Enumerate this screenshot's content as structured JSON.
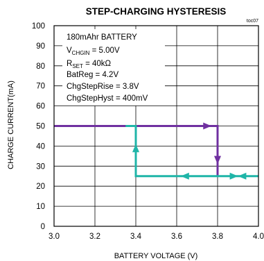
{
  "chart_data": {
    "type": "line",
    "title": "STEP-CHARGING HYSTERESIS",
    "tag": "toc07",
    "xlabel": "BATTERY VOLTAGE (V)",
    "ylabel": "CHARGE CURRENT(mA)",
    "xlim": [
      3.0,
      4.0
    ],
    "ylim": [
      0,
      100
    ],
    "x_ticks": [
      3.0,
      3.2,
      3.4,
      3.6,
      3.8,
      4.0
    ],
    "x_tick_labels": [
      "3.0",
      "3.2",
      "3.4",
      "3.6",
      "3.8",
      "4.0"
    ],
    "y_ticks": [
      0,
      10,
      20,
      30,
      40,
      50,
      60,
      70,
      80,
      90,
      100
    ],
    "y_tick_labels": [
      "0",
      "10",
      "20",
      "30",
      "40",
      "50",
      "60",
      "70",
      "80",
      "90",
      "100"
    ],
    "grid": true,
    "annotation": {
      "line1": "180mAhr BATTERY",
      "line2_main": "V",
      "line2_sub": "CHGIN",
      "line2_rest": " = 5.00V",
      "line3_main": "R",
      "line3_sub": "SET",
      "line3_rest": " = 40kΩ",
      "line4": "BatReg = 4.2V",
      "line5": "ChgStepRise = 3.8V",
      "line6": "ChgStepHyst = 400mV"
    },
    "series": [
      {
        "color": "#7030a0",
        "x": [
          3.0,
          3.8,
          3.8
        ],
        "y": [
          50,
          50,
          25
        ],
        "arrows": [
          [
            3.75,
            50,
            "right"
          ],
          [
            3.8,
            33,
            "down"
          ]
        ]
      },
      {
        "color": "#1fb5a8",
        "x": [
          4.0,
          3.4,
          3.4,
          3.35
        ],
        "y": [
          25,
          25,
          50,
          50
        ],
        "arrows": [
          [
            3.92,
            25,
            "left"
          ],
          [
            3.88,
            25,
            "right"
          ],
          [
            3.64,
            25,
            "left"
          ],
          [
            3.4,
            39,
            "up"
          ]
        ]
      }
    ]
  }
}
